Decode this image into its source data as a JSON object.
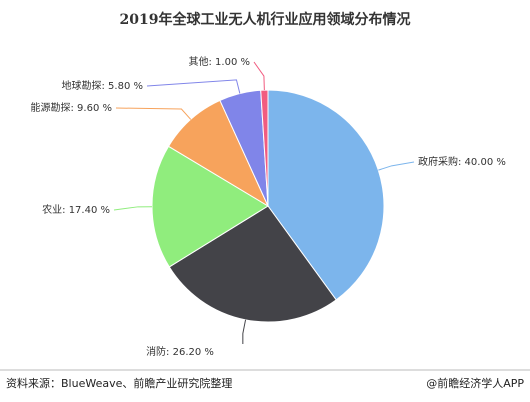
{
  "chart_data": {
    "type": "pie",
    "title": "2019年全球工业无人机行业应用领域分布情况",
    "labels": [
      "政府采购: 40.00 %",
      "消防: 26.20 %",
      "农业: 17.40 %",
      "能源勘探: 9.60 %",
      "地球勘探: 5.80 %",
      "其他: 1.00 %"
    ],
    "values": [
      40,
      26.2,
      17.4,
      9.6,
      5.8,
      1
    ],
    "colors": [
      "#7cb5ec",
      "#434348",
      "#90ed7d",
      "#f7a35c",
      "#8085e9",
      "#f15c80"
    ]
  },
  "footer": {
    "source": "资料来源：BlueWeave、前瞻产业研究院整理",
    "credit": "@前瞻经济学人APP"
  }
}
